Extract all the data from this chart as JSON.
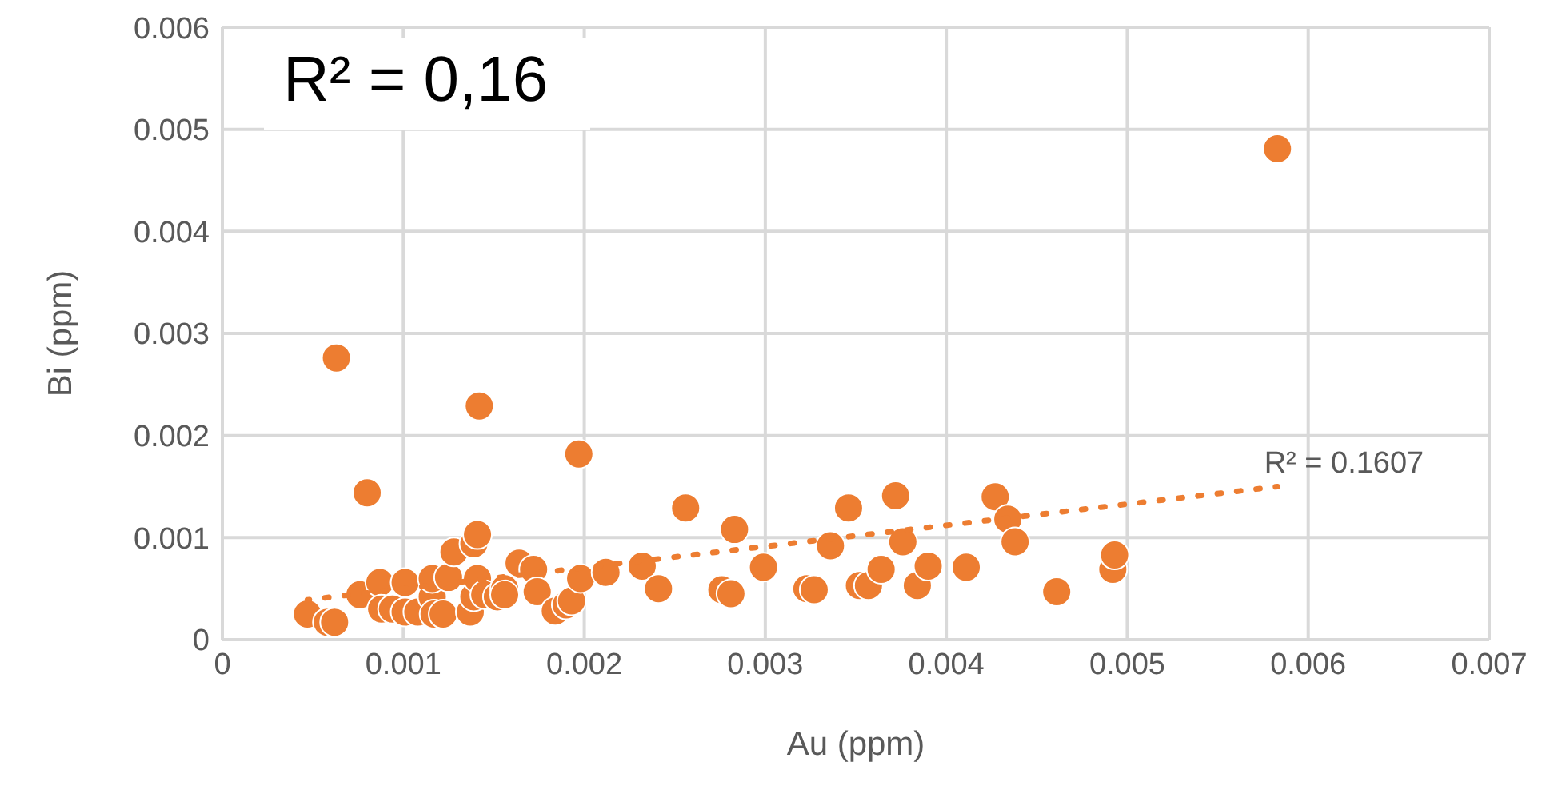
{
  "chart_data": {
    "type": "scatter",
    "xlabel": "Au (ppm)",
    "ylabel": "Bi (ppm)",
    "xlim": [
      0,
      0.007
    ],
    "xticks": [
      0,
      0.001,
      0.002,
      0.003,
      0.004,
      0.005,
      0.006,
      0.007
    ],
    "ylim": [
      0,
      0.006
    ],
    "yticks": [
      0,
      0.001,
      0.002,
      0.003,
      0.004,
      0.005,
      0.006
    ],
    "grid": true,
    "legend": false,
    "series": [
      {
        "type": "scatter",
        "color": "#ed7d31",
        "marker": "circle",
        "x": [
          0.00047,
          0.00058,
          0.00062,
          0.00063,
          0.00076,
          0.0008,
          0.00087,
          0.00088,
          0.00094,
          0.00101,
          0.00101,
          0.00108,
          0.00116,
          0.00116,
          0.00117,
          0.00122,
          0.00125,
          0.00128,
          0.00137,
          0.00139,
          0.00139,
          0.00141,
          0.00141,
          0.00142,
          0.00145,
          0.00152,
          0.00156,
          0.00156,
          0.00164,
          0.00172,
          0.00174,
          0.00184,
          0.0019,
          0.00193,
          0.00197,
          0.00198,
          0.00212,
          0.00232,
          0.00241,
          0.00256,
          0.00276,
          0.00281,
          0.00283,
          0.00299,
          0.00323,
          0.00327,
          0.00336,
          0.00346,
          0.00352,
          0.00357,
          0.00364,
          0.00372,
          0.00376,
          0.00384,
          0.0039,
          0.00411,
          0.00427,
          0.00434,
          0.00438,
          0.00461,
          0.00492,
          0.00493,
          0.00583
        ],
        "values": [
          0.00025,
          0.00017,
          0.00017,
          0.00276,
          0.00044,
          0.00144,
          0.00056,
          0.0003,
          0.0003,
          0.00056,
          0.00027,
          0.00027,
          0.00042,
          0.0006,
          0.00025,
          0.00025,
          0.00061,
          0.00086,
          0.00027,
          0.00042,
          0.00094,
          0.00103,
          0.0006,
          0.00229,
          0.00044,
          0.00042,
          0.0005,
          0.00044,
          0.00075,
          0.00069,
          0.00047,
          0.00028,
          0.00034,
          0.00038,
          0.00182,
          0.0006,
          0.00066,
          0.00072,
          0.0005,
          0.00129,
          0.00049,
          0.00045,
          0.00108,
          0.00071,
          0.0005,
          0.00049,
          0.00092,
          0.00129,
          0.00053,
          0.00053,
          0.00069,
          0.00141,
          0.00096,
          0.00053,
          0.00072,
          0.00071,
          0.0014,
          0.00118,
          0.00096,
          0.00047,
          0.00069,
          0.00083,
          0.00481
        ]
      },
      {
        "type": "line",
        "color": "#ed7d31",
        "marker": "none",
        "line_style": "dotted",
        "x": [
          0.00047,
          0.00583
        ],
        "values": [
          0.00039,
          0.0015
        ]
      }
    ],
    "annotations": [
      "R² = 0,16",
      {
        "text": "R² = 0.1607",
        "x": 0.0058,
        "y": 0.0015
      }
    ]
  }
}
